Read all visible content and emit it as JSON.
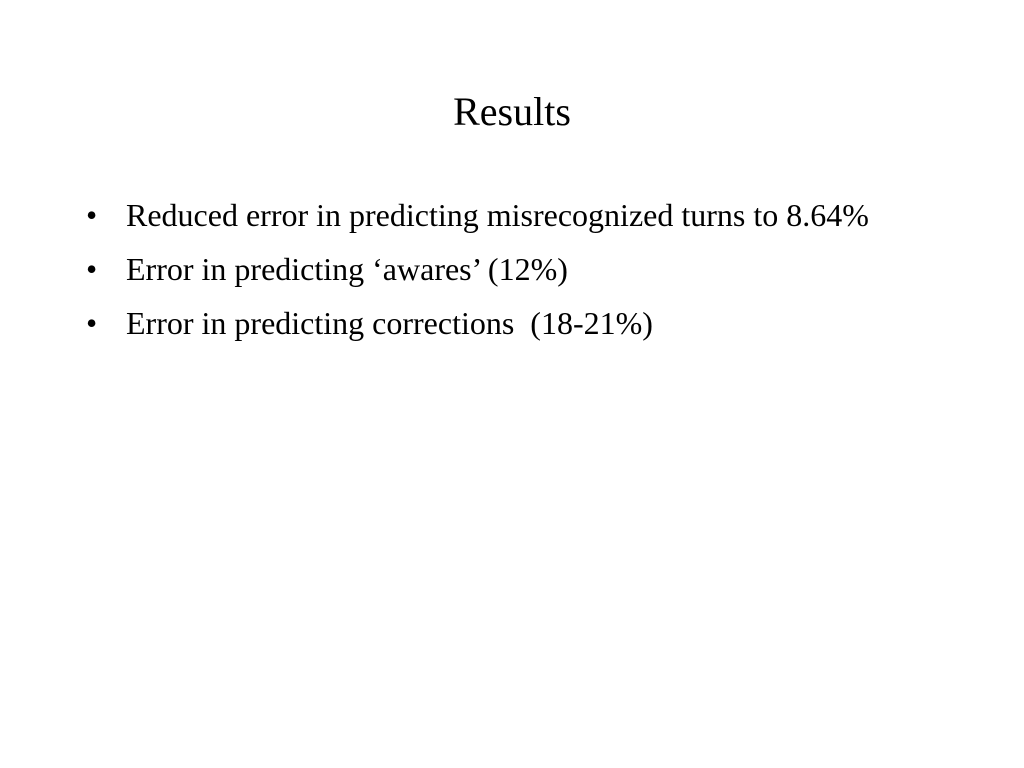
{
  "slide": {
    "title": "Results",
    "bullets": [
      "Reduced error in predicting misrecognized turns to 8.64%",
      "Error in predicting ‘awares’ (12%)",
      "Error in predicting corrections  (18-21%)"
    ]
  }
}
